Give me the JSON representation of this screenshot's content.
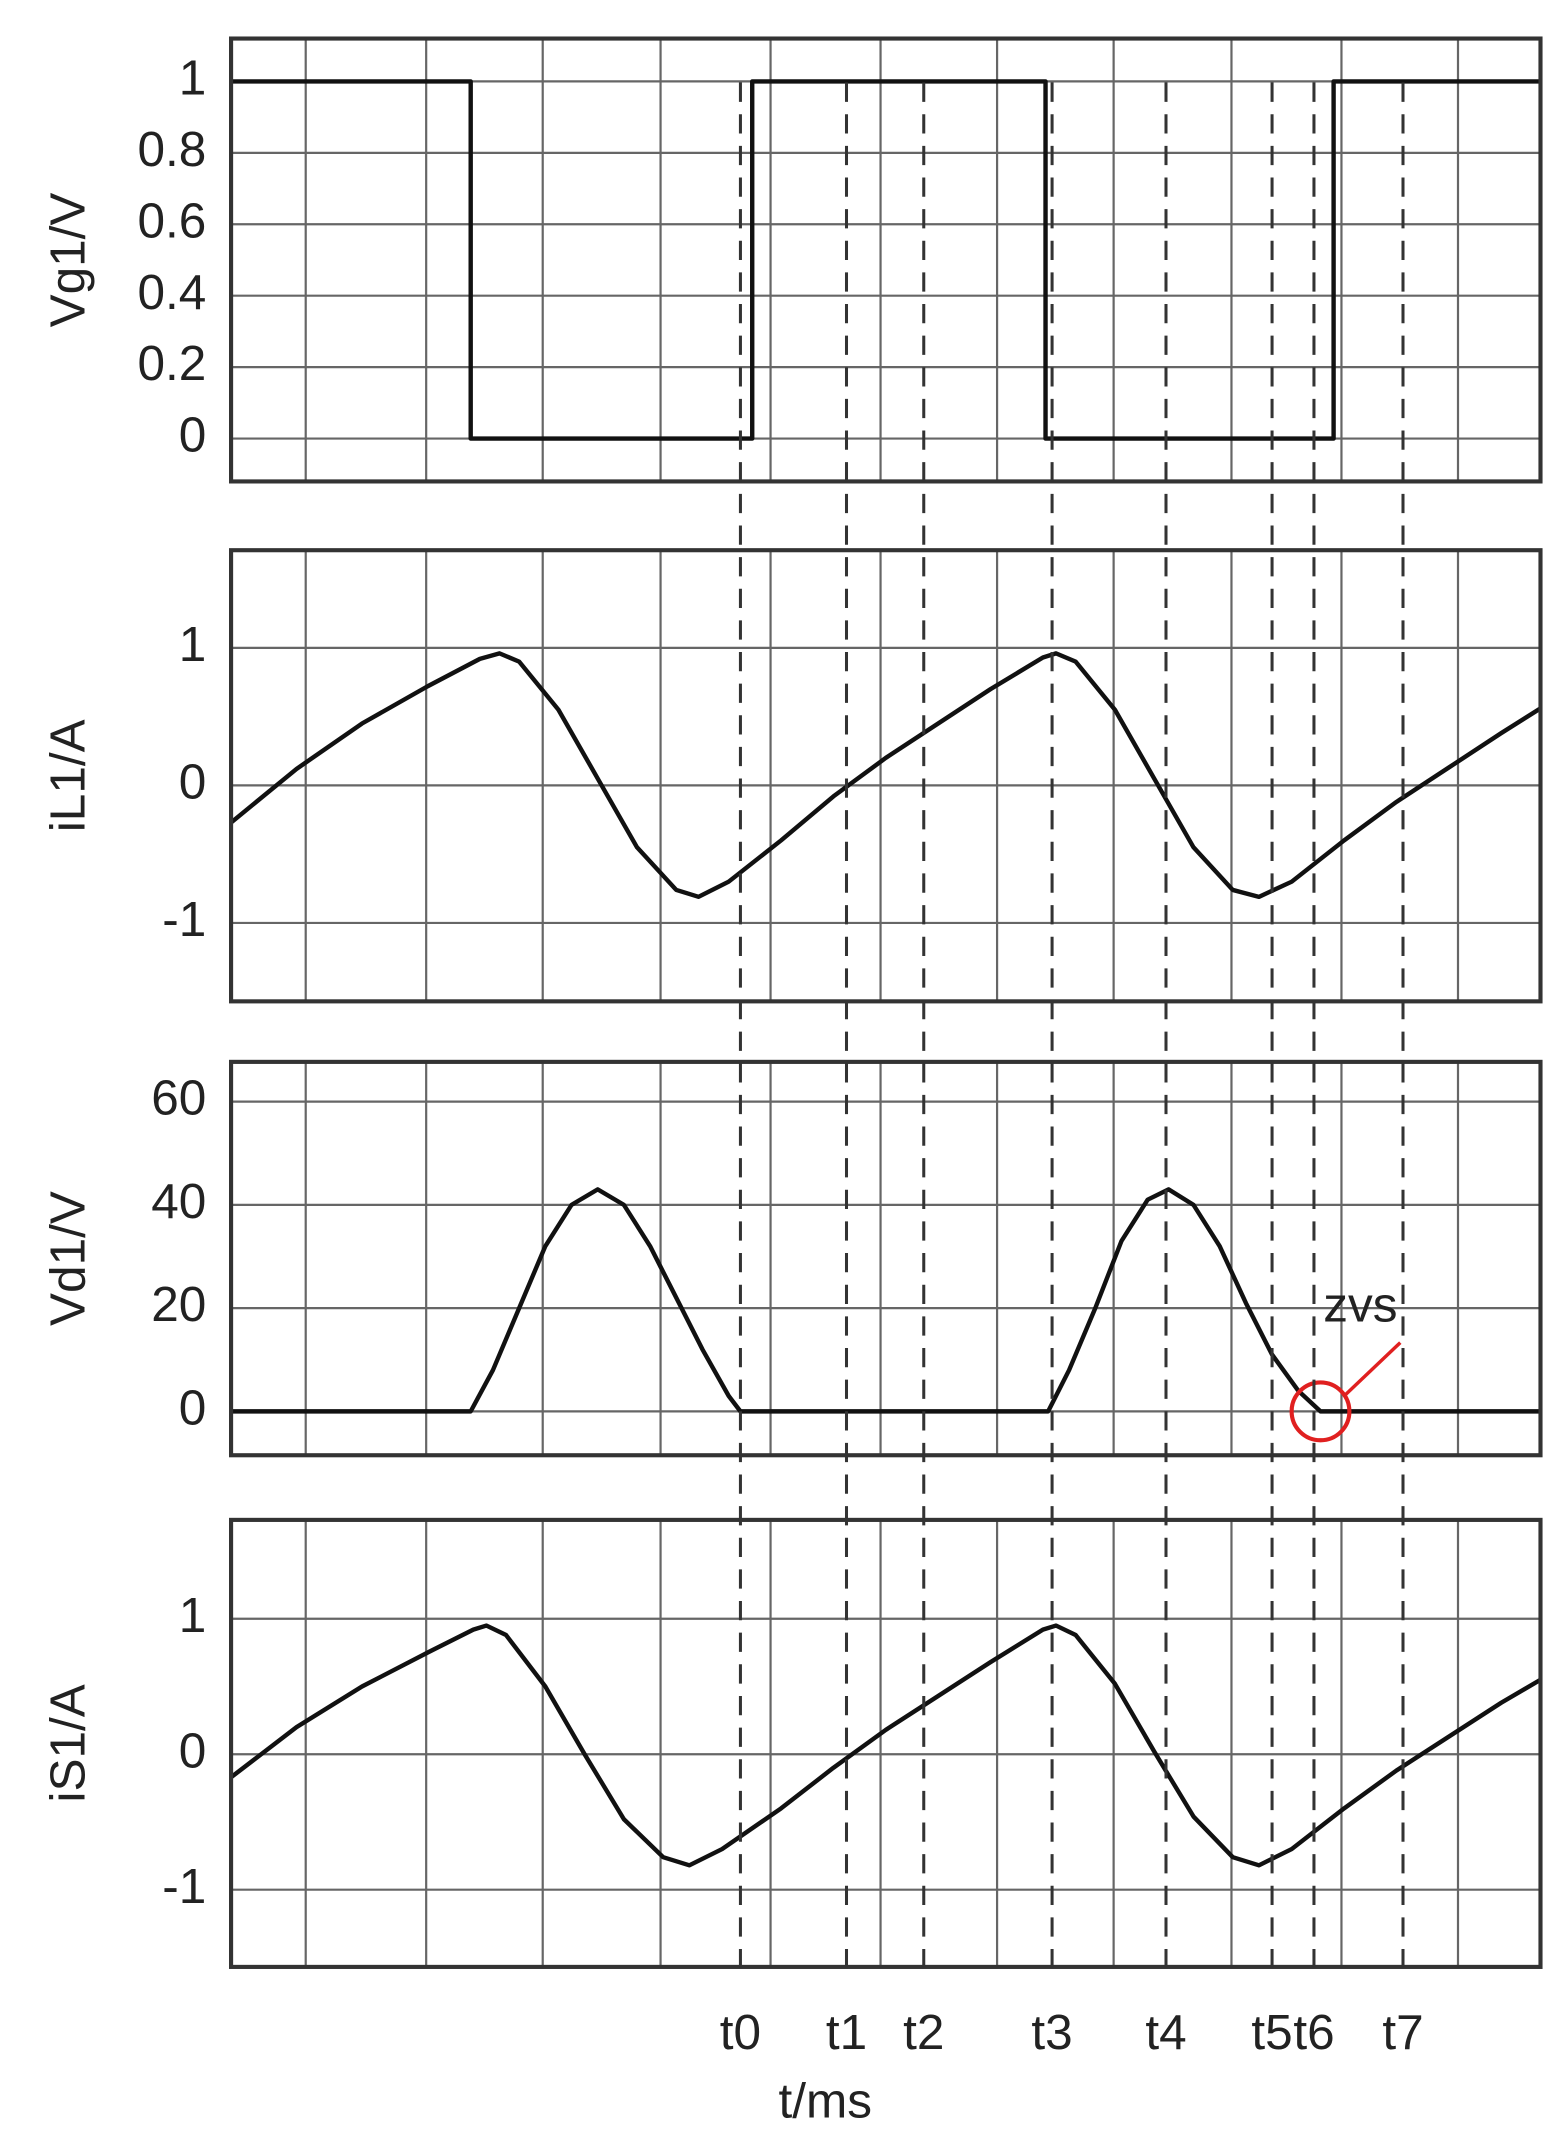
{
  "chart_data": [
    {
      "type": "line",
      "ylabel": "Vg1/V",
      "color": "#111111",
      "xlim": [
        0,
        100
      ],
      "xgrid": [
        5.7,
        14.9,
        23.8,
        32.8,
        41.2,
        49.6,
        58.5,
        67.4,
        76.4,
        84.8,
        93.7
      ],
      "ylim": [
        -0.12,
        1.12
      ],
      "yticks": [
        0,
        0.2,
        0.4,
        0.6,
        0.8,
        1
      ],
      "x": [
        0,
        18.3,
        18.3,
        39.8,
        39.8,
        62.2,
        62.2,
        84.2,
        84.2,
        100
      ],
      "values": [
        1,
        1,
        0,
        0,
        1,
        1,
        0,
        0,
        1,
        1
      ]
    },
    {
      "type": "line",
      "ylabel": "iL1/A",
      "color": "#111111",
      "xlim": [
        0,
        100
      ],
      "xgrid": [
        5.7,
        14.9,
        23.8,
        32.8,
        41.2,
        49.6,
        58.5,
        67.4,
        76.4,
        84.8,
        93.7
      ],
      "ylim": [
        -1.57,
        1.71
      ],
      "yticks": [
        -1,
        0,
        1
      ],
      "x": [
        0,
        5,
        10,
        15,
        19,
        20.5,
        22,
        25,
        28,
        31,
        34,
        35.7,
        38,
        42,
        46,
        50,
        54,
        58,
        62,
        63,
        64.5,
        67.5,
        70.5,
        73.5,
        76.5,
        78.5,
        81,
        85,
        89,
        93,
        97,
        100
      ],
      "values": [
        -0.27,
        0.12,
        0.45,
        0.72,
        0.92,
        0.96,
        0.9,
        0.55,
        0.05,
        -0.45,
        -0.76,
        -0.81,
        -0.7,
        -0.4,
        -0.08,
        0.2,
        0.45,
        0.7,
        0.93,
        0.96,
        0.9,
        0.55,
        0.05,
        -0.45,
        -0.76,
        -0.81,
        -0.7,
        -0.4,
        -0.12,
        0.13,
        0.38,
        0.56
      ]
    },
    {
      "type": "line",
      "ylabel": "Vd1/V",
      "color": "#111111",
      "xlim": [
        0,
        100
      ],
      "xgrid": [
        5.7,
        14.9,
        23.8,
        32.8,
        41.2,
        49.6,
        58.5,
        67.4,
        76.4,
        84.8,
        93.7
      ],
      "ylim": [
        -8.5,
        67.7
      ],
      "yticks": [
        0,
        20,
        40,
        60
      ],
      "x": [
        0,
        18.3,
        20,
        22,
        24,
        26,
        28,
        30,
        32,
        34,
        36,
        38,
        38.9,
        62.4,
        64,
        66,
        68,
        70,
        71.6,
        73.5,
        75.5,
        77.5,
        79.5,
        81.5,
        83.2,
        100
      ],
      "values": [
        0,
        0,
        8,
        20,
        32,
        40,
        43,
        40,
        32,
        22,
        12,
        3,
        0,
        0,
        8,
        20,
        33,
        41,
        43,
        40,
        32,
        21,
        11,
        4,
        0,
        0
      ],
      "annotation": {
        "text": "zvs",
        "x": 83.2,
        "y": 0,
        "color": "#e02020"
      }
    },
    {
      "type": "line",
      "ylabel": "iS1/A",
      "color": "#111111",
      "xlabel": "t/ms",
      "xlim": [
        0,
        100
      ],
      "xgrid": [
        5.7,
        14.9,
        23.8,
        32.8,
        41.2,
        49.6,
        58.5,
        67.4,
        76.4,
        84.8,
        93.7
      ],
      "ylim": [
        -1.57,
        1.73
      ],
      "yticks": [
        -1,
        0,
        1
      ],
      "xticks": [
        {
          "value": 38.9,
          "label": "t0"
        },
        {
          "value": 47,
          "label": "t1"
        },
        {
          "value": 52.9,
          "label": "t2"
        },
        {
          "value": 62.7,
          "label": "t3"
        },
        {
          "value": 71.4,
          "label": "t4"
        },
        {
          "value": 79.5,
          "label": "t5"
        },
        {
          "value": 82.7,
          "label": "t6"
        },
        {
          "value": 89.5,
          "label": "t7"
        }
      ],
      "x": [
        0,
        5,
        10,
        15,
        18.5,
        19.5,
        21,
        24,
        27,
        30,
        33,
        35,
        37.5,
        42,
        46,
        50,
        54,
        58,
        62,
        63,
        64.5,
        67.5,
        70.5,
        73.5,
        76.5,
        78.5,
        81,
        85,
        89,
        93,
        97,
        100
      ],
      "values": [
        -0.17,
        0.2,
        0.5,
        0.75,
        0.92,
        0.95,
        0.88,
        0.5,
        0.0,
        -0.48,
        -0.76,
        -0.82,
        -0.7,
        -0.4,
        -0.1,
        0.18,
        0.43,
        0.68,
        0.92,
        0.95,
        0.88,
        0.52,
        0.02,
        -0.46,
        -0.76,
        -0.82,
        -0.7,
        -0.4,
        -0.12,
        0.13,
        0.38,
        0.55
      ]
    }
  ]
}
